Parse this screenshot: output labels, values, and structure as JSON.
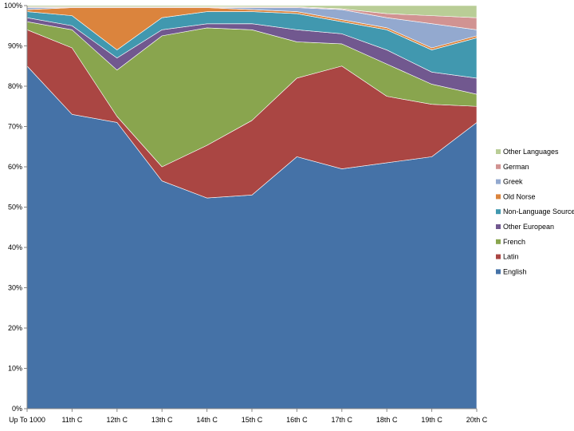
{
  "chart_data": {
    "type": "area",
    "stacked": true,
    "normalized": true,
    "title": "",
    "xlabel": "",
    "ylabel": "",
    "ylim": [
      0,
      100
    ],
    "yticks": [
      0,
      10,
      20,
      30,
      40,
      50,
      60,
      70,
      80,
      90,
      100
    ],
    "ytick_labels": [
      "0%",
      "10%",
      "20%",
      "30%",
      "40%",
      "50%",
      "60%",
      "70%",
      "80%",
      "90%",
      "100%"
    ],
    "grid": false,
    "legend_position": "right",
    "categories": [
      "Up To 1000",
      "11th C",
      "12th C",
      "13th C",
      "14th C",
      "15th C",
      "16th C",
      "17th C",
      "18th C",
      "19th C",
      "20th C"
    ],
    "series": [
      {
        "name": "English",
        "color": "#4572A7",
        "values": [
          85,
          73,
          71,
          56.5,
          52,
          53,
          62.5,
          59.5,
          61,
          62.5,
          71
        ]
      },
      {
        "name": "Latin",
        "color": "#AA4643",
        "values": [
          9,
          16.5,
          1.5,
          3.5,
          13,
          18.5,
          19.5,
          25.5,
          16.5,
          13,
          4
        ]
      },
      {
        "name": "French",
        "color": "#89A54E",
        "values": [
          2,
          4.5,
          11.5,
          32.5,
          29,
          22.5,
          9,
          5.5,
          8,
          5,
          3
        ]
      },
      {
        "name": "Other European",
        "color": "#71588F",
        "values": [
          1,
          1,
          3,
          1.5,
          1,
          1.5,
          3,
          2.5,
          3.5,
          3,
          4
        ]
      },
      {
        "name": "Non-Language Sources",
        "color": "#4198AF",
        "values": [
          1.5,
          2.5,
          2,
          3,
          3,
          3,
          4,
          3,
          5,
          5.5,
          10
        ]
      },
      {
        "name": "Old Norse",
        "color": "#DB843D",
        "values": [
          0.5,
          2,
          10.5,
          2.5,
          1,
          0.5,
          0.5,
          0.5,
          0.5,
          0.5,
          0.5
        ]
      },
      {
        "name": "Greek",
        "color": "#93A9CF",
        "values": [
          0.5,
          0,
          0,
          0,
          0,
          0.5,
          1,
          2.5,
          2.5,
          6,
          1.5
        ]
      },
      {
        "name": "German",
        "color": "#D19392",
        "values": [
          0.2,
          0.2,
          0.2,
          0.2,
          0.2,
          0.2,
          0.2,
          0.2,
          1,
          2,
          3
        ]
      },
      {
        "name": "Other Languages",
        "color": "#B9CD96",
        "values": [
          0.3,
          0.3,
          0.3,
          0.3,
          0.3,
          0.3,
          0.3,
          0.8,
          2,
          2.5,
          3
        ]
      }
    ]
  }
}
